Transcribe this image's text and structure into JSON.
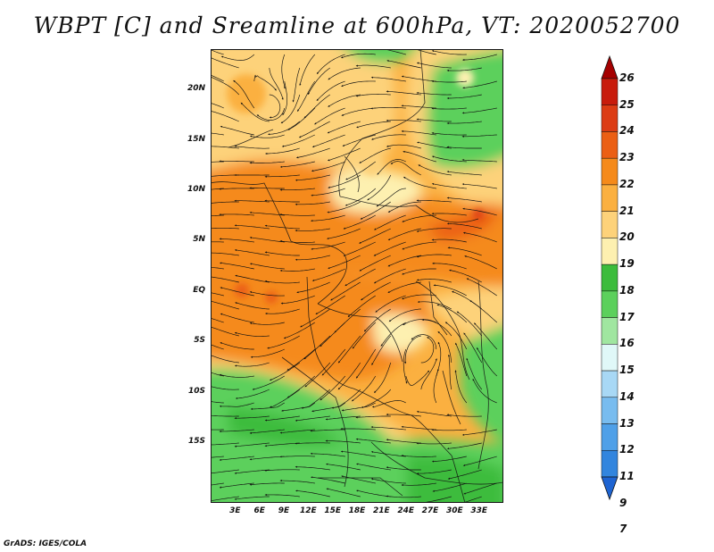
{
  "title": "WBPT [C] and Sreamline at 600hPa, VT: 2020052700",
  "map": {
    "lat_range": [
      -21,
      24
    ],
    "lon_range": [
      0,
      36
    ],
    "lat_labels": [
      {
        "lat": 20,
        "label": "20N"
      },
      {
        "lat": 15,
        "label": "15N"
      },
      {
        "lat": 10,
        "label": "10N"
      },
      {
        "lat": 5,
        "label": "5N"
      },
      {
        "lat": 0,
        "label": "EQ"
      },
      {
        "lat": -5,
        "label": "5S"
      },
      {
        "lat": -10,
        "label": "10S"
      },
      {
        "lat": -15,
        "label": "15S"
      }
    ],
    "lon_labels": [
      {
        "lon": 3,
        "label": "3E"
      },
      {
        "lon": 6,
        "label": "6E"
      },
      {
        "lon": 9,
        "label": "9E"
      },
      {
        "lon": 12,
        "label": "12E"
      },
      {
        "lon": 15,
        "label": "15E"
      },
      {
        "lon": 18,
        "label": "18E"
      },
      {
        "lon": 21,
        "label": "21E"
      },
      {
        "lon": 24,
        "label": "24E"
      },
      {
        "lon": 27,
        "label": "27E"
      },
      {
        "lon": 30,
        "label": "30E"
      },
      {
        "lon": 33,
        "label": "33E"
      }
    ]
  },
  "colorbar": {
    "labels": [
      "26",
      "25",
      "24",
      "23",
      "22",
      "21",
      "20",
      "19",
      "18",
      "17",
      "16",
      "15",
      "14",
      "13",
      "12",
      "11",
      "9",
      "7"
    ],
    "colors": [
      "#a50000",
      "#c81c0c",
      "#dc3c14",
      "#eb5f14",
      "#f58a1a",
      "#fbb040",
      "#fdd27a",
      "#fdf0b0",
      "#3cbc3c",
      "#5cd05c",
      "#a0e6a0",
      "#e0f8f8",
      "#a8d8f5",
      "#78bcef",
      "#4fa0e8",
      "#3285de",
      "#1e64d2"
    ]
  },
  "credit": "GrADS: IGES/COLA"
}
